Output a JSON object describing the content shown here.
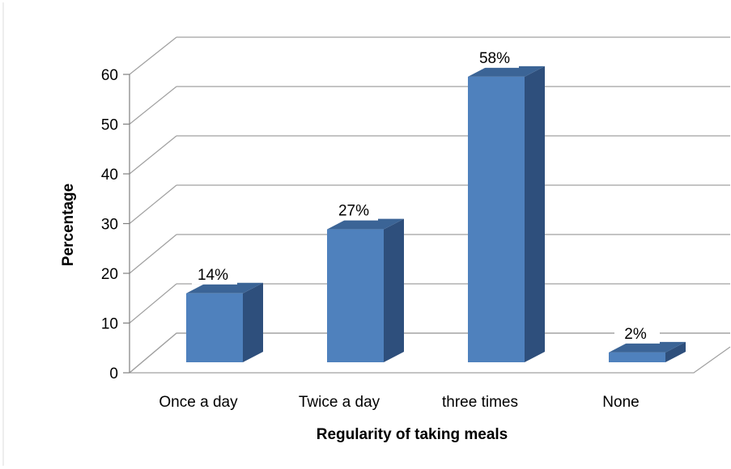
{
  "chart_data": {
    "type": "bar",
    "categories": [
      "Once a day",
      "Twice a day",
      "three times",
      "None"
    ],
    "values": [
      14,
      27,
      58,
      2
    ],
    "data_labels": [
      "14%",
      "27%",
      "58%",
      "2%"
    ],
    "xlabel": "Regularity of taking meals",
    "ylabel": "Percentage",
    "ylim": [
      0,
      60
    ],
    "yticks": [
      0,
      10,
      20,
      30,
      40,
      50,
      60
    ],
    "grid": true,
    "style": "3d-column",
    "colors": {
      "bar_front": "#4F81BD",
      "bar_side": "#2E4F7C",
      "bar_top": "#3B6496",
      "grid": "#A0A0A0",
      "axis": "#808080"
    }
  }
}
